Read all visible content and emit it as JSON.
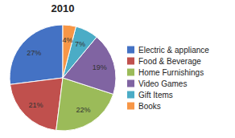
{
  "chart_data": {
    "type": "pie",
    "title": "2010",
    "categories": [
      "Electric & appliance",
      "Food & Beverage",
      "Home Furnishings",
      "Video Games",
      "Gift Items",
      "Books"
    ],
    "values": [
      27,
      21,
      22,
      19,
      7,
      4
    ],
    "value_labels": [
      "27%",
      "21%",
      "22%",
      "19%",
      "7%",
      "4%"
    ],
    "colors": [
      "#4472C4",
      "#C0504D",
      "#9BBB59",
      "#8064A2",
      "#4BACC6",
      "#F79646"
    ],
    "data_labels": true,
    "legend": "right"
  }
}
